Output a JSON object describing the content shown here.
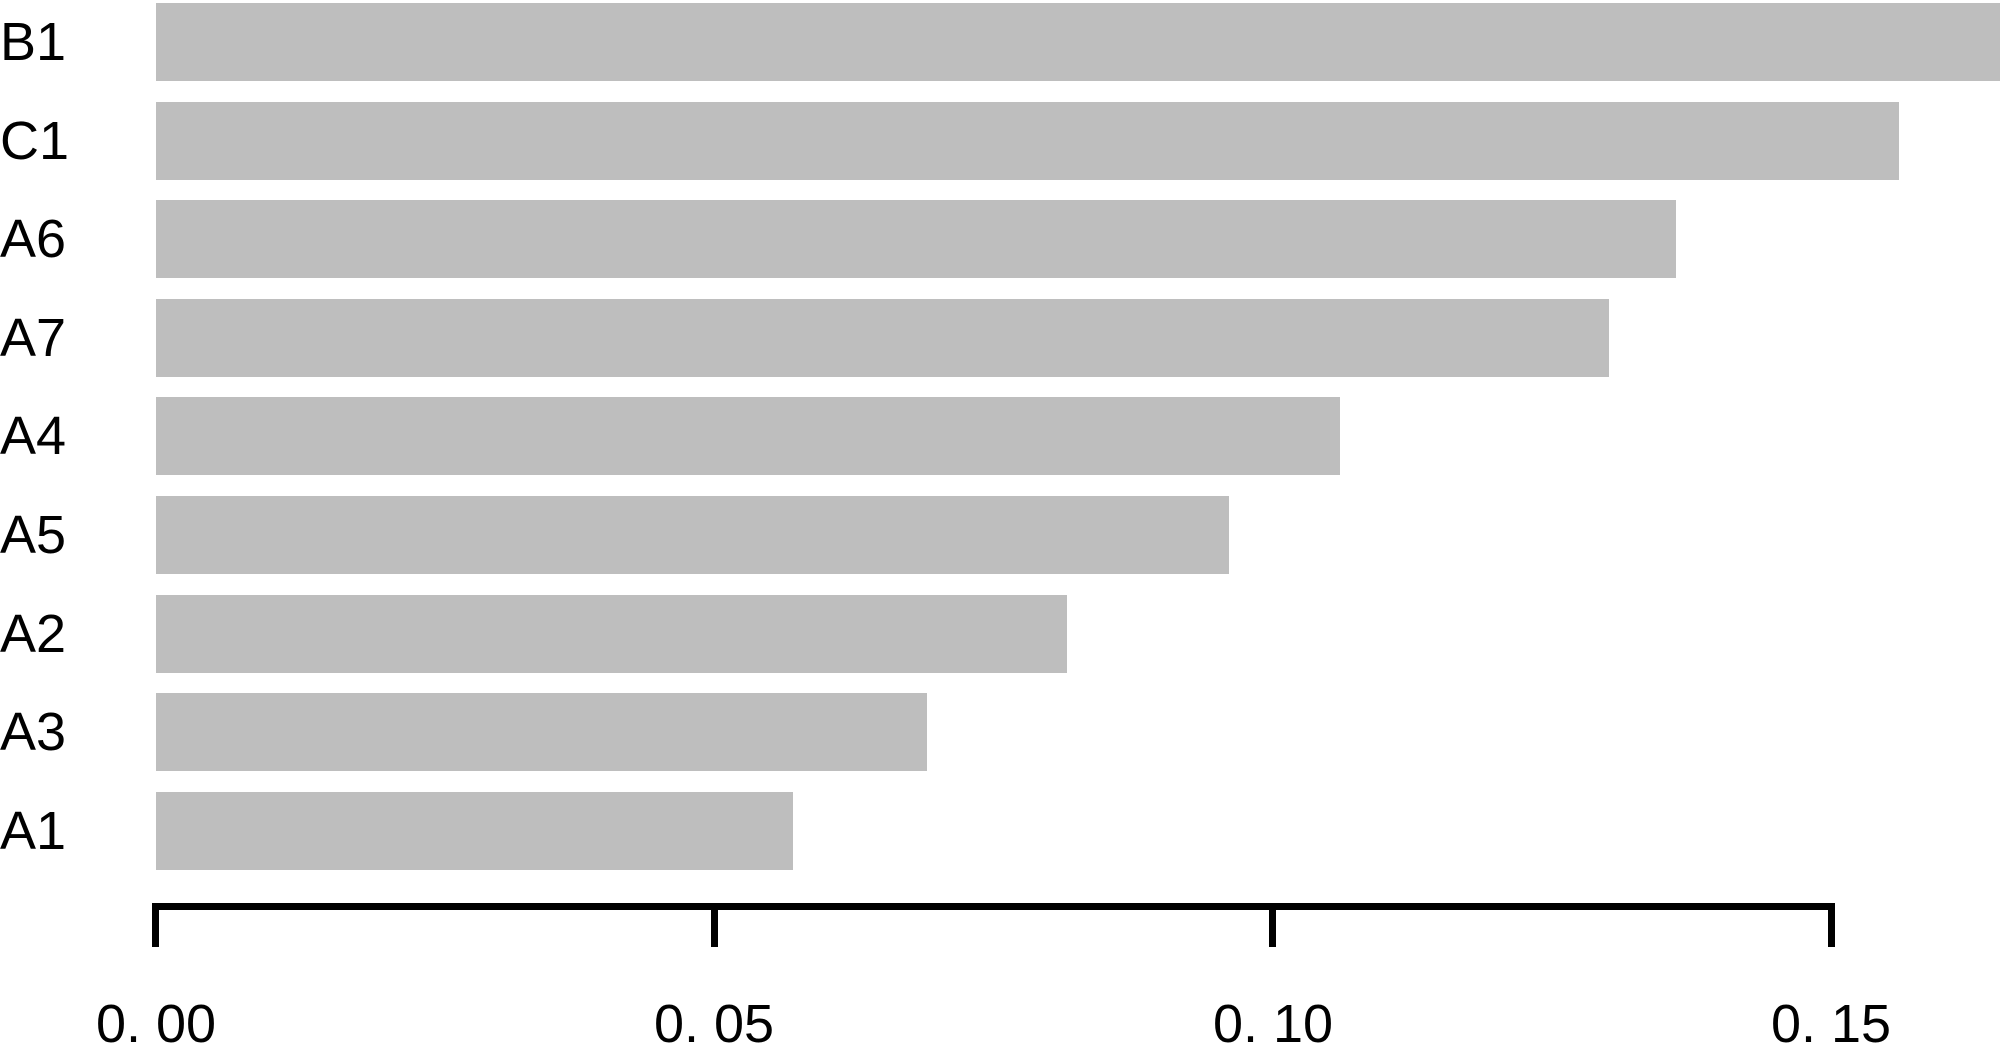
{
  "colors": {
    "background": "#ffffff",
    "bar_fill": "#bebebe",
    "axis": "#000000",
    "text": "#000000"
  },
  "chart_data": {
    "type": "bar",
    "orientation": "horizontal",
    "title": "",
    "xlabel": "",
    "ylabel": "",
    "categories": [
      "B1",
      "C1",
      "A6",
      "A7",
      "A4",
      "A5",
      "A2",
      "A3",
      "A1"
    ],
    "values": [
      0.165,
      0.156,
      0.136,
      0.13,
      0.106,
      0.096,
      0.0815,
      0.069,
      0.057
    ],
    "xlim": [
      0,
      0.15
    ],
    "x_ticks": [
      0.0,
      0.05,
      0.1,
      0.15
    ],
    "x_tick_labels": [
      "0. 00",
      "0. 05",
      "0. 10",
      "0. 15"
    ],
    "grid": false,
    "legend": null,
    "bar_color": "#bebebe"
  }
}
